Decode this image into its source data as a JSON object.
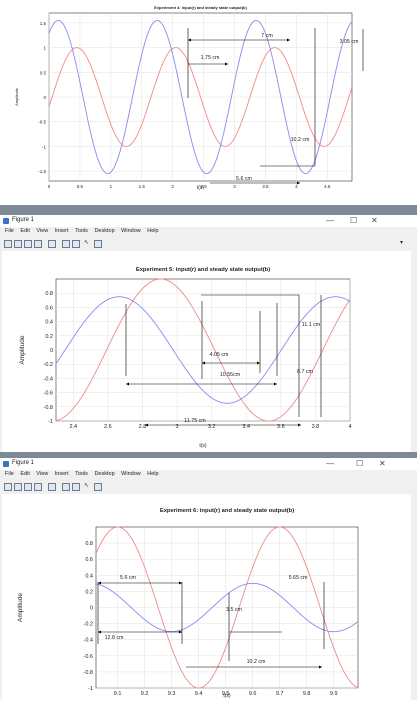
{
  "figures": [
    {
      "title": "Experiment 4: input(r) and steady state output(b)",
      "window_title": "",
      "ylabel": "Amplitude",
      "xlabel": "t(s)",
      "annotations": [
        "7 cm",
        "3.05 cm",
        "1.75 cm",
        "10.2 cm",
        "5.6 cm"
      ]
    },
    {
      "window_title": "Figure 1",
      "menu": [
        "File",
        "Edit",
        "View",
        "Insert",
        "Tools",
        "Desktop",
        "Window",
        "Help"
      ],
      "annotations": [
        "11.1 cm",
        "4.05 cm",
        "10.55cm",
        "8.7 cm",
        "11.75 cm"
      ]
    },
    {
      "window_title": "Figure 1",
      "menu": [
        "File",
        "Edit",
        "View",
        "Insert",
        "Tools",
        "Desktop",
        "Window",
        "Help"
      ],
      "annotations": [
        "5.6 cm",
        "5.65 cm",
        "3.5 cm",
        "12.8 cm",
        "10.2 cm"
      ]
    }
  ],
  "colors": {
    "input": "#f08a8a",
    "output": "#8a8af0",
    "measure": "#000000",
    "window_sep": "#7d8a96"
  },
  "chart_data": [
    {
      "type": "line",
      "title": "Experiment 4: input(r) and steady state output(b)",
      "xlabel": "t(s)",
      "ylabel": "Amplitude",
      "xlim": [
        0,
        4.9
      ],
      "ylim": [
        -1.7,
        1.7
      ],
      "xticks": [
        "0",
        "0.5",
        "1",
        "1.5",
        "2",
        "2.5",
        "3",
        "3.5",
        "4",
        "4.5"
      ],
      "yticks": [
        "1.5",
        "1",
        "0.5",
        "0",
        "-0.5",
        "-1",
        "-1.5"
      ],
      "series": [
        {
          "role": "input",
          "amp": 1.0,
          "period": 1.6,
          "phase": 0.45
        },
        {
          "role": "output",
          "amp": 1.55,
          "period": 1.6,
          "phase": 0.15
        }
      ]
    },
    {
      "type": "line",
      "title": "Experiment 5: input(r) and steady state output(b)",
      "xlabel": "t(s)",
      "ylabel": "Amplitude",
      "xlim": [
        2.3,
        4.0
      ],
      "ylim": [
        -1.0,
        1.0
      ],
      "xticks": [
        "2.4",
        "2.6",
        "2.8",
        "3",
        "3.2",
        "3.4",
        "3.6",
        "3.8",
        "4"
      ],
      "yticks": [
        "0.8",
        "0.6",
        "0.4",
        "0.2",
        "0",
        "-0.2",
        "-0.4",
        "-0.6",
        "-0.8",
        "-1"
      ],
      "series": [
        {
          "role": "input",
          "amp": 1.0,
          "period": 1.25,
          "phase": 2.905
        },
        {
          "role": "output",
          "amp": 0.75,
          "period": 1.25,
          "phase": 2.665
        }
      ]
    },
    {
      "type": "line",
      "title": "Experiment 6: input(r) and steady state output(b)",
      "xlabel": "t(s)",
      "ylabel": "Amplitude",
      "xlim": [
        9.02,
        9.99
      ],
      "ylim": [
        -1.0,
        1.0
      ],
      "xticks": [
        "9.1",
        "9.2",
        "9.3",
        "9.4",
        "9.5",
        "9.6",
        "9.7",
        "9.8",
        "9.9"
      ],
      "yticks": [
        "0.8",
        "0.6",
        "0.4",
        "0.2",
        "0",
        "-0.2",
        "-0.4",
        "-0.6",
        "-0.8",
        "-1"
      ],
      "series": [
        {
          "role": "input",
          "amp": 1.0,
          "period": 0.6,
          "phase": 9.1
        },
        {
          "role": "output",
          "amp": 0.3,
          "period": 0.6,
          "phase": 9.0
        }
      ]
    }
  ]
}
